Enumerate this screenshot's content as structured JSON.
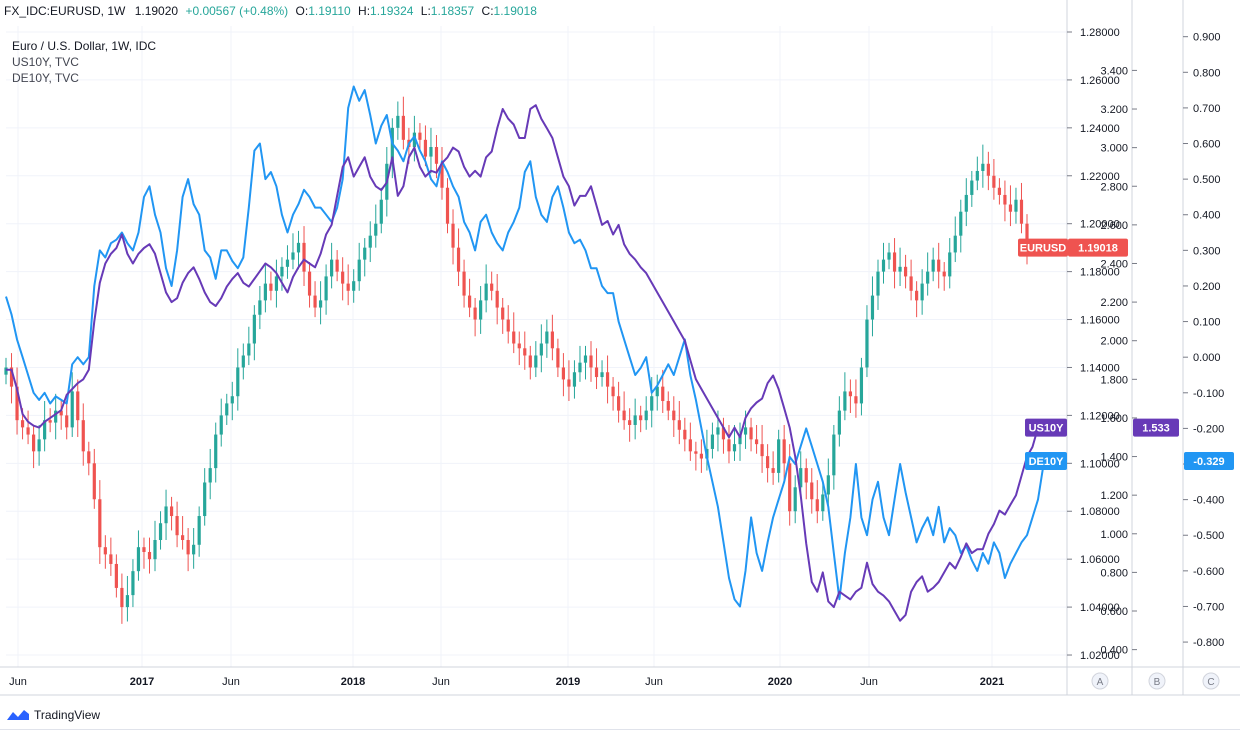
{
  "header": {
    "symbol": "FX_IDC:EURUSD, 1W",
    "last": "1.19020",
    "change": "+0.00567 (+0.48%)",
    "o_label": "O:",
    "o": "1.19110",
    "h_label": "H:",
    "h": "1.19324",
    "l_label": "L:",
    "l": "1.18357",
    "c_label": "C:",
    "c": "1.19018"
  },
  "legend": {
    "main": "Euro / U.S. Dollar, 1W, IDC",
    "s1": "US10Y, TVC",
    "s2": "DE10Y, TVC"
  },
  "footer": {
    "brand": "TradingView"
  },
  "colors": {
    "up": "#26a69a",
    "down": "#ef5350",
    "us10y": "#673ab7",
    "de10y": "#2196f3",
    "grid": "#f0f3fa"
  },
  "chart_data": {
    "type": "line",
    "x_ticks": [
      "Jun",
      "2017",
      "Jun",
      "2018",
      "Jun",
      "2019",
      "Jun",
      "2020",
      "Jun",
      "2021"
    ],
    "axes": {
      "A": {
        "ticks": [
          "1.28000",
          "1.26000",
          "1.24000",
          "1.22000",
          "1.20000",
          "1.18000",
          "1.16000",
          "1.14000",
          "1.12000",
          "1.10000",
          "1.08000",
          "1.06000",
          "1.04000",
          "1.02000"
        ],
        "ylim": [
          1.015,
          1.2825
        ],
        "label": "A"
      },
      "B": {
        "ticks": [
          "3.400",
          "3.200",
          "3.000",
          "2.800",
          "2.600",
          "2.400",
          "2.200",
          "2.000",
          "1.800",
          "1.600",
          "1.400",
          "1.200",
          "1.000",
          "0.800",
          "0.600",
          "0.400"
        ],
        "ylim": [
          0.31,
          3.63
        ],
        "label": "B"
      },
      "C": {
        "ticks": [
          "0.900",
          "0.800",
          "0.700",
          "0.600",
          "0.500",
          "0.400",
          "0.300",
          "0.200",
          "0.100",
          "0.000",
          "-0.100",
          "-0.200",
          "-0.300",
          "-0.400",
          "-0.500",
          "-0.600",
          "-0.700",
          "-0.800"
        ],
        "ylim": [
          -0.87,
          0.93
        ],
        "label": "C"
      }
    },
    "series": [
      {
        "name": "EURUSD",
        "axis": "A",
        "kind": "candles",
        "last_label": "1.19018",
        "values": [
          1.14,
          1.132,
          1.118,
          1.115,
          1.112,
          1.105,
          1.11,
          1.118,
          1.117,
          1.122,
          1.12,
          1.115,
          1.13,
          1.118,
          1.105,
          1.1,
          1.085,
          1.065,
          1.062,
          1.058,
          1.048,
          1.04,
          1.045,
          1.055,
          1.065,
          1.063,
          1.06,
          1.068,
          1.075,
          1.082,
          1.078,
          1.07,
          1.068,
          1.062,
          1.066,
          1.078,
          1.092,
          1.098,
          1.112,
          1.12,
          1.125,
          1.128,
          1.14,
          1.145,
          1.15,
          1.162,
          1.168,
          1.175,
          1.172,
          1.178,
          1.182,
          1.185,
          1.188,
          1.192,
          1.18,
          1.17,
          1.165,
          1.168,
          1.178,
          1.185,
          1.18,
          1.175,
          1.172,
          1.176,
          1.185,
          1.19,
          1.195,
          1.2,
          1.21,
          1.225,
          1.24,
          1.245,
          1.235,
          1.232,
          1.238,
          1.235,
          1.228,
          1.232,
          1.225,
          1.215,
          1.2,
          1.19,
          1.18,
          1.17,
          1.165,
          1.16,
          1.168,
          1.175,
          1.172,
          1.165,
          1.16,
          1.155,
          1.15,
          1.148,
          1.145,
          1.14,
          1.145,
          1.15,
          1.155,
          1.148,
          1.14,
          1.135,
          1.132,
          1.138,
          1.142,
          1.145,
          1.14,
          1.136,
          1.138,
          1.132,
          1.128,
          1.122,
          1.118,
          1.116,
          1.12,
          1.118,
          1.122,
          1.128,
          1.132,
          1.126,
          1.122,
          1.118,
          1.114,
          1.11,
          1.105,
          1.104,
          1.102,
          1.106,
          1.112,
          1.115,
          1.11,
          1.105,
          1.108,
          1.112,
          1.115,
          1.11,
          1.108,
          1.103,
          1.098,
          1.096,
          1.11,
          1.1,
          1.08,
          1.09,
          1.098,
          1.092,
          1.085,
          1.08,
          1.087,
          1.095,
          1.112,
          1.122,
          1.13,
          1.128,
          1.125,
          1.14,
          1.16,
          1.17,
          1.18,
          1.185,
          1.188,
          1.18,
          1.182,
          1.178,
          1.172,
          1.168,
          1.175,
          1.18,
          1.185,
          1.18,
          1.178,
          1.188,
          1.195,
          1.205,
          1.212,
          1.218,
          1.222,
          1.225,
          1.22,
          1.215,
          1.212,
          1.208,
          1.205,
          1.21,
          1.2,
          1.19
        ]
      },
      {
        "name": "US10Y",
        "axis": "B",
        "kind": "line",
        "color": "#673ab7",
        "last_label": "1.533",
        "values": [
          1.85,
          1.85,
          1.75,
          1.62,
          1.58,
          1.56,
          1.55,
          1.58,
          1.6,
          1.62,
          1.64,
          1.72,
          1.75,
          1.78,
          1.8,
          1.85,
          2.1,
          2.3,
          2.4,
          2.45,
          2.48,
          2.55,
          2.45,
          2.4,
          2.45,
          2.48,
          2.5,
          2.45,
          2.35,
          2.25,
          2.2,
          2.22,
          2.3,
          2.35,
          2.38,
          2.32,
          2.25,
          2.2,
          2.18,
          2.22,
          2.28,
          2.32,
          2.35,
          2.3,
          2.28,
          2.32,
          2.36,
          2.4,
          2.38,
          2.35,
          2.3,
          2.25,
          2.33,
          2.38,
          2.42,
          2.4,
          2.38,
          2.45,
          2.55,
          2.6,
          2.75,
          2.9,
          2.95,
          2.85,
          2.9,
          2.95,
          2.85,
          2.8,
          2.78,
          2.82,
          2.95,
          2.75,
          2.8,
          2.95,
          3.0,
          2.9,
          2.85,
          2.88,
          2.87,
          2.92,
          2.95,
          3.0,
          2.98,
          2.9,
          2.85,
          2.88,
          2.85,
          2.95,
          2.98,
          3.1,
          3.2,
          3.15,
          3.12,
          3.05,
          3.05,
          3.2,
          3.22,
          3.15,
          3.1,
          3.05,
          2.95,
          2.85,
          2.8,
          2.7,
          2.75,
          2.75,
          2.8,
          2.7,
          2.6,
          2.62,
          2.55,
          2.6,
          2.5,
          2.45,
          2.42,
          2.38,
          2.35,
          2.3,
          2.25,
          2.2,
          2.15,
          2.1,
          2.05,
          2.0,
          1.9,
          1.8,
          1.75,
          1.7,
          1.65,
          1.6,
          1.55,
          1.5,
          1.55,
          1.5,
          1.6,
          1.65,
          1.68,
          1.7,
          1.78,
          1.82,
          1.75,
          1.65,
          1.55,
          1.4,
          1.2,
          0.95,
          0.75,
          0.7,
          0.8,
          0.65,
          0.62,
          0.7,
          0.68,
          0.66,
          0.7,
          0.72,
          0.85,
          0.74,
          0.7,
          0.68,
          0.65,
          0.6,
          0.55,
          0.58,
          0.7,
          0.75,
          0.78,
          0.7,
          0.72,
          0.75,
          0.8,
          0.85,
          0.82,
          0.88,
          0.95,
          0.9,
          0.92,
          0.92,
          1.0,
          1.05,
          1.12,
          1.1,
          1.15,
          1.2,
          1.3,
          1.4,
          1.45,
          1.55
        ]
      },
      {
        "name": "DE10Y",
        "axis": "C",
        "kind": "line",
        "color": "#2196f3",
        "last_label": "-0.329",
        "values": [
          0.17,
          0.12,
          0.05,
          0.0,
          -0.05,
          -0.1,
          -0.12,
          -0.1,
          -0.13,
          -0.11,
          -0.12,
          -0.13,
          -0.02,
          0.0,
          -0.02,
          0.0,
          0.2,
          0.3,
          0.28,
          0.32,
          0.33,
          0.35,
          0.32,
          0.3,
          0.35,
          0.45,
          0.48,
          0.4,
          0.35,
          0.25,
          0.2,
          0.3,
          0.45,
          0.5,
          0.43,
          0.4,
          0.3,
          0.28,
          0.22,
          0.3,
          0.3,
          0.27,
          0.25,
          0.28,
          0.42,
          0.58,
          0.6,
          0.5,
          0.52,
          0.48,
          0.4,
          0.35,
          0.4,
          0.43,
          0.47,
          0.45,
          0.42,
          0.42,
          0.4,
          0.38,
          0.42,
          0.5,
          0.7,
          0.76,
          0.72,
          0.75,
          0.68,
          0.6,
          0.65,
          0.68,
          0.6,
          0.58,
          0.55,
          0.6,
          0.62,
          0.58,
          0.55,
          0.5,
          0.48,
          0.55,
          0.52,
          0.48,
          0.45,
          0.38,
          0.35,
          0.3,
          0.38,
          0.4,
          0.35,
          0.32,
          0.3,
          0.35,
          0.38,
          0.42,
          0.52,
          0.55,
          0.45,
          0.4,
          0.38,
          0.45,
          0.48,
          0.42,
          0.35,
          0.32,
          0.33,
          0.3,
          0.25,
          0.25,
          0.2,
          0.18,
          0.18,
          0.1,
          0.05,
          0.0,
          -0.05,
          -0.03,
          0.0,
          -0.1,
          -0.08,
          -0.05,
          -0.02,
          -0.05,
          0.0,
          0.05,
          -0.05,
          -0.12,
          -0.2,
          -0.28,
          -0.35,
          -0.42,
          -0.52,
          -0.62,
          -0.68,
          -0.7,
          -0.6,
          -0.45,
          -0.55,
          -0.6,
          -0.52,
          -0.45,
          -0.4,
          -0.35,
          -0.28,
          -0.3,
          -0.25,
          -0.2,
          -0.25,
          -0.3,
          -0.35,
          -0.42,
          -0.55,
          -0.68,
          -0.55,
          -0.45,
          -0.3,
          -0.45,
          -0.5,
          -0.4,
          -0.35,
          -0.45,
          -0.5,
          -0.4,
          -0.3,
          -0.38,
          -0.45,
          -0.52,
          -0.48,
          -0.45,
          -0.5,
          -0.42,
          -0.52,
          -0.48,
          -0.5,
          -0.55,
          -0.53,
          -0.57,
          -0.6,
          -0.55,
          -0.58,
          -0.52,
          -0.55,
          -0.62,
          -0.58,
          -0.55,
          -0.52,
          -0.5,
          -0.45,
          -0.4,
          -0.3
        ]
      }
    ],
    "tags": {
      "eurusd": "EURUSD",
      "us10y": "US10Y",
      "de10y": "DE10Y"
    },
    "grid": true
  }
}
